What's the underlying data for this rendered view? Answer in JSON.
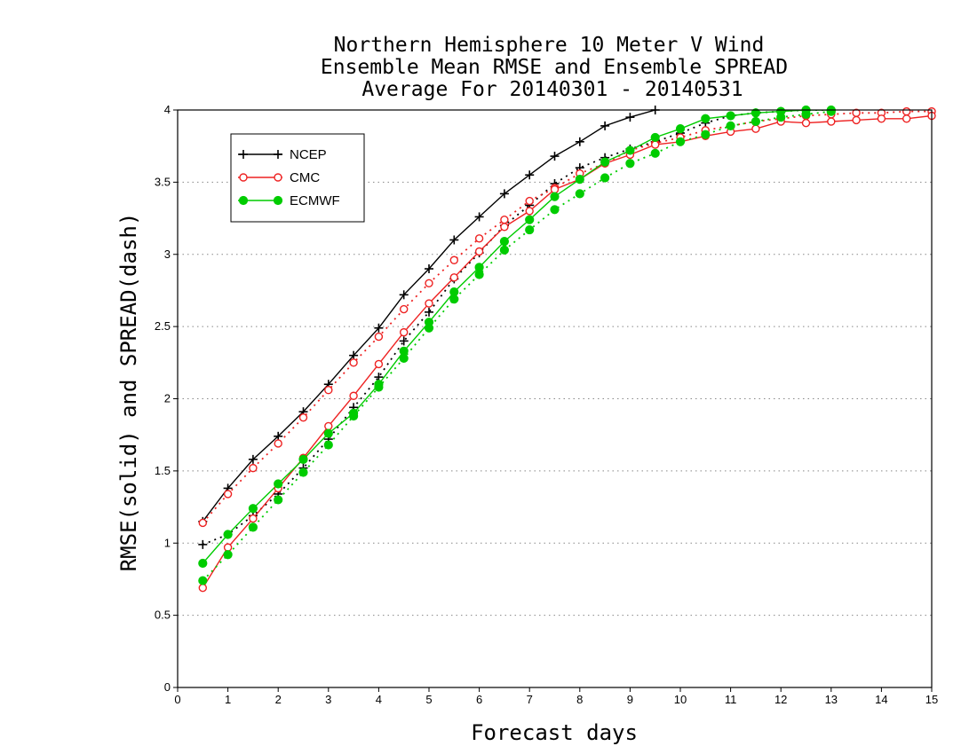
{
  "chart_data": {
    "type": "line",
    "title": [
      "Northern Hemisphere 10 Meter V Wind",
      "Ensemble Mean RMSE and Ensemble SPREAD",
      "Average For 20140301 - 20140531"
    ],
    "xlabel": "Forecast days",
    "ylabel": "RMSE(solid) and SPREAD(dash)",
    "xlim": [
      0,
      15
    ],
    "ylim": [
      0,
      4
    ],
    "xticks": [
      "0",
      "1",
      "2",
      "3",
      "4",
      "5",
      "6",
      "7",
      "8",
      "9",
      "10",
      "11",
      "12",
      "13",
      "14",
      "15"
    ],
    "yticks": [
      "0",
      "0.5",
      "1",
      "1.5",
      "2",
      "2.5",
      "3",
      "3.5",
      "4"
    ],
    "grid": "horizontal dotted",
    "legend_position": "top-left",
    "series": [
      {
        "name": "NCEP",
        "color": "#000000",
        "marker": "plus",
        "rmse": {
          "x": [
            0.5,
            1,
            1.5,
            2,
            2.5,
            3,
            3.5,
            4,
            4.5,
            5,
            5.5,
            6,
            6.5,
            7,
            7.5,
            8,
            8.5,
            9,
            9.5,
            10
          ],
          "y": [
            1.15,
            1.38,
            1.58,
            1.74,
            1.91,
            2.1,
            2.3,
            2.49,
            2.72,
            2.9,
            3.1,
            3.26,
            3.42,
            3.55,
            3.68,
            3.78,
            3.89,
            3.95,
            4.0,
            4.02
          ]
        },
        "spread": {
          "x": [
            0.5,
            1,
            1.5,
            2,
            2.5,
            3,
            3.5,
            4,
            4.5,
            5,
            5.5,
            6,
            6.5,
            7,
            7.5,
            8,
            8.5,
            9,
            9.5,
            10,
            10.5,
            11,
            11.5,
            12,
            12.5,
            13
          ],
          "y": [
            0.99,
            1.06,
            1.19,
            1.34,
            1.52,
            1.72,
            1.94,
            2.15,
            2.4,
            2.6,
            2.83,
            3.01,
            3.2,
            3.34,
            3.49,
            3.6,
            3.67,
            3.73,
            3.78,
            3.84,
            3.91,
            3.96,
            3.98,
            3.99,
            4.0,
            4.0
          ]
        }
      },
      {
        "name": "CMC",
        "color": "#ee2222",
        "marker": "open-circle",
        "rmse": {
          "x": [
            0.5,
            1,
            1.5,
            2,
            2.5,
            3,
            3.5,
            4,
            4.5,
            5,
            5.5,
            6,
            6.5,
            7,
            7.5,
            8,
            8.5,
            9,
            9.5,
            10,
            10.5,
            11,
            11.5,
            12,
            12.5,
            13,
            13.5,
            14,
            14.5,
            15
          ],
          "y": [
            0.69,
            0.97,
            1.17,
            1.38,
            1.59,
            1.81,
            2.02,
            2.24,
            2.46,
            2.66,
            2.84,
            3.02,
            3.19,
            3.3,
            3.45,
            3.52,
            3.63,
            3.69,
            3.76,
            3.78,
            3.82,
            3.85,
            3.87,
            3.92,
            3.91,
            3.92,
            3.93,
            3.94,
            3.94,
            3.96
          ]
        },
        "spread": {
          "x": [
            0.5,
            1,
            1.5,
            2,
            2.5,
            3,
            3.5,
            4,
            4.5,
            5,
            5.5,
            6,
            6.5,
            7,
            7.5,
            8,
            8.5,
            9,
            9.5,
            10,
            10.5,
            11,
            11.5,
            12,
            12.5,
            13,
            13.5,
            14,
            14.5,
            15
          ],
          "y": [
            1.14,
            1.34,
            1.52,
            1.69,
            1.87,
            2.06,
            2.25,
            2.43,
            2.62,
            2.8,
            2.96,
            3.11,
            3.24,
            3.37,
            3.46,
            3.56,
            3.63,
            3.72,
            3.77,
            3.81,
            3.86,
            3.89,
            3.92,
            3.94,
            3.96,
            3.97,
            3.98,
            3.98,
            3.99,
            3.99
          ]
        }
      },
      {
        "name": "ECMWF",
        "color": "#00cc00",
        "marker": "filled-circle",
        "rmse": {
          "x": [
            0.5,
            1,
            1.5,
            2,
            2.5,
            3,
            3.5,
            4,
            4.5,
            5,
            5.5,
            6,
            6.5,
            7,
            7.5,
            8,
            8.5,
            9,
            9.5,
            10,
            10.5,
            11,
            11.5,
            12,
            12.5,
            13
          ],
          "y": [
            0.86,
            1.06,
            1.24,
            1.41,
            1.58,
            1.76,
            1.9,
            2.1,
            2.33,
            2.53,
            2.74,
            2.91,
            3.09,
            3.24,
            3.4,
            3.52,
            3.64,
            3.72,
            3.81,
            3.87,
            3.94,
            3.96,
            3.98,
            3.99,
            4.0,
            4.0
          ]
        },
        "spread": {
          "x": [
            0.5,
            1,
            1.5,
            2,
            2.5,
            3,
            3.5,
            4,
            4.5,
            5,
            5.5,
            6,
            6.5,
            7,
            7.5,
            8,
            8.5,
            9,
            9.5,
            10,
            10.5,
            11,
            11.5,
            12,
            12.5,
            13
          ],
          "y": [
            0.74,
            0.92,
            1.11,
            1.3,
            1.49,
            1.68,
            1.88,
            2.08,
            2.28,
            2.49,
            2.69,
            2.86,
            3.03,
            3.17,
            3.31,
            3.42,
            3.53,
            3.63,
            3.7,
            3.78,
            3.83,
            3.89,
            3.92,
            3.95,
            3.97,
            3.99
          ]
        }
      }
    ]
  }
}
